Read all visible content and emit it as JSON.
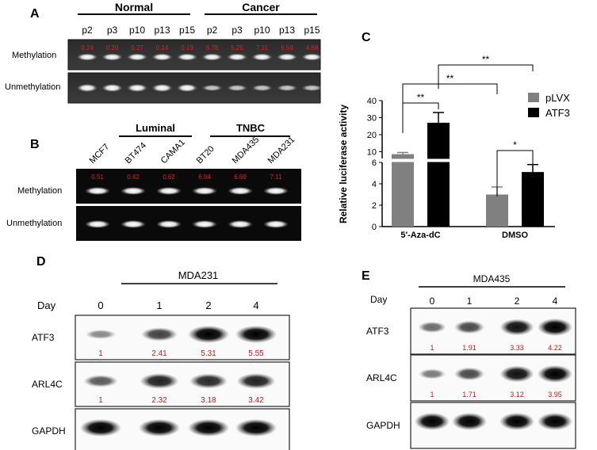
{
  "panelA": {
    "letter": "A",
    "groups": [
      "Normal",
      "Cancer"
    ],
    "lanes": [
      "p2",
      "p3",
      "p10",
      "p13",
      "p15",
      "p2",
      "p3",
      "p10",
      "p13",
      "p15"
    ],
    "rows": [
      "Methylation",
      "Unmethylation"
    ],
    "values": [
      "0.24",
      "0.20",
      "0.27",
      "0.14",
      "0.19",
      "6.78",
      "5.25",
      "7.11",
      "6.59",
      "4.88"
    ]
  },
  "panelB": {
    "letter": "B",
    "groups": [
      "Luminal",
      "TNBC"
    ],
    "lanes": [
      "MCF7",
      "BT474",
      "CAMA1",
      "BT20",
      "MDA435",
      "MDA231"
    ],
    "rows": [
      "Methylation",
      "Unmethylation"
    ],
    "values": [
      "0.51",
      "0.42",
      "0.62",
      "6.94",
      "6.69",
      "7.11"
    ]
  },
  "panelC": {
    "letter": "C",
    "chart_data": {
      "type": "bar",
      "ylabel": "Relative luciferase activity",
      "categories": [
        "5'-Aza-dC",
        "DMSO"
      ],
      "series": [
        {
          "name": "pLVX",
          "values": [
            8.5,
            3.0
          ],
          "errors": [
            1.0,
            0.7
          ],
          "color": "#808080"
        },
        {
          "name": "ATF3",
          "values": [
            27,
            5.1
          ],
          "errors": [
            6,
            0.7
          ],
          "color": "#000000"
        }
      ],
      "axis_broken": true,
      "lower_range": [
        0,
        6
      ],
      "upper_range": [
        6,
        40
      ],
      "lower_ticks": [
        "0",
        "2",
        "4",
        "6"
      ],
      "upper_ticks": [
        "10",
        "20",
        "30",
        "40"
      ],
      "legend_position": "right",
      "significance": [
        "**",
        "**",
        "**",
        "*"
      ]
    }
  },
  "panelD": {
    "letter": "D",
    "cell_line": "MDA231",
    "day_label": "Day",
    "days": [
      "0",
      "1",
      "2",
      "4"
    ],
    "blots": [
      {
        "name": "ATF3",
        "values": [
          "1",
          "2.41",
          "5.31",
          "5.55"
        ]
      },
      {
        "name": "ARL4C",
        "values": [
          "1",
          "2.32",
          "3.18",
          "3.42"
        ]
      },
      {
        "name": "GAPDH",
        "values": []
      }
    ]
  },
  "panelE": {
    "letter": "E",
    "cell_line": "MDA435",
    "day_label": "Day",
    "days": [
      "0",
      "1",
      "2",
      "4"
    ],
    "blots": [
      {
        "name": "ATF3",
        "values": [
          "1",
          "1.91",
          "3.33",
          "4.22"
        ]
      },
      {
        "name": "ARL4C",
        "values": [
          "1",
          "1.71",
          "3.12",
          "3.95"
        ]
      },
      {
        "name": "GAPDH",
        "values": []
      }
    ]
  }
}
